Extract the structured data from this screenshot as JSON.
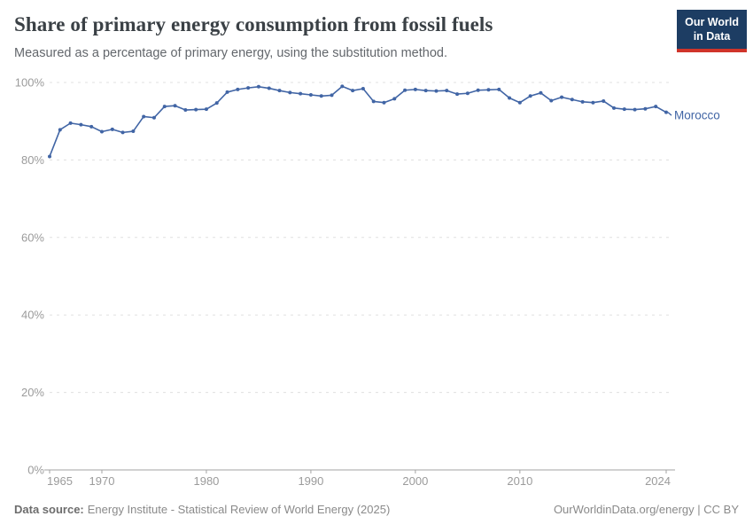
{
  "header": {
    "title": "Share of primary energy consumption from fossil fuels",
    "subtitle": "Measured as a percentage of primary energy, using the substitution method."
  },
  "logo": {
    "line1": "Our World",
    "line2": "in Data",
    "bg_color": "#1d3d63",
    "accent_color": "#d0342a"
  },
  "chart_data": {
    "type": "line",
    "title": "Share of primary energy consumption from fossil fuels",
    "xlabel": "",
    "ylabel": "",
    "xlim": [
      1965,
      2024
    ],
    "ylim": [
      0,
      100
    ],
    "grid": "horizontal-dashed",
    "legend_position": "end-of-line-label",
    "y_ticks": [
      "0%",
      "20%",
      "40%",
      "60%",
      "80%",
      "100%"
    ],
    "x_ticks": [
      "1965",
      "1970",
      "1980",
      "1990",
      "2000",
      "2010",
      "2024"
    ],
    "axis_color": "#a3a3a3",
    "grid_color": "#e0e0e0",
    "tick_label_color": "#9b9b9b",
    "series": [
      {
        "name": "Morocco",
        "color": "#4165a5",
        "x": [
          1965,
          1966,
          1967,
          1968,
          1969,
          1970,
          1971,
          1972,
          1973,
          1974,
          1975,
          1976,
          1977,
          1978,
          1979,
          1980,
          1981,
          1982,
          1983,
          1984,
          1985,
          1986,
          1987,
          1988,
          1989,
          1990,
          1991,
          1992,
          1993,
          1994,
          1995,
          1996,
          1997,
          1998,
          1999,
          2000,
          2001,
          2002,
          2003,
          2004,
          2005,
          2006,
          2007,
          2008,
          2009,
          2010,
          2011,
          2012,
          2013,
          2014,
          2015,
          2016,
          2017,
          2018,
          2019,
          2020,
          2021,
          2022,
          2023,
          2024
        ],
        "values": [
          80.9,
          87.8,
          89.5,
          89.1,
          88.6,
          87.3,
          87.9,
          87.1,
          87.4,
          91.2,
          90.9,
          93.8,
          94.0,
          92.9,
          93.0,
          93.1,
          94.7,
          97.5,
          98.2,
          98.6,
          98.9,
          98.5,
          97.9,
          97.4,
          97.1,
          96.8,
          96.5,
          96.7,
          99.0,
          97.9,
          98.4,
          95.1,
          94.8,
          95.8,
          98.0,
          98.2,
          97.9,
          97.8,
          97.9,
          97.0,
          97.2,
          98.0,
          98.1,
          98.2,
          96.0,
          94.8,
          96.5,
          97.3,
          95.3,
          96.2,
          95.6,
          95.0,
          94.8,
          95.2,
          93.4,
          93.1,
          93.0,
          93.2,
          93.8,
          92.3
        ]
      }
    ]
  },
  "footer": {
    "datasource_label": "Data source:",
    "datasource_value": "Energy Institute - Statistical Review of World Energy (2025)",
    "credit": "OurWorldinData.org/energy | CC BY"
  }
}
